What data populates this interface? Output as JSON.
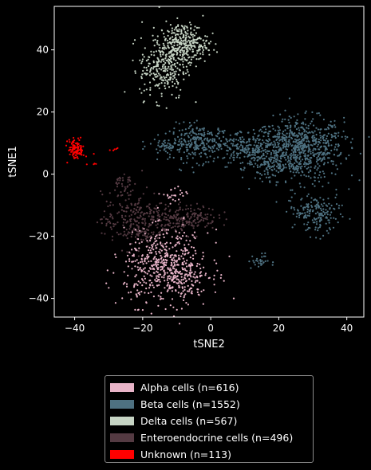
{
  "chart_data": {
    "type": "scatter",
    "xlabel": "tSNE2",
    "ylabel": "tSNE1",
    "xlim": [
      -46,
      45
    ],
    "ylim": [
      -46,
      54
    ],
    "xticks": [
      -40,
      -20,
      0,
      20,
      40
    ],
    "yticks": [
      -40,
      -20,
      0,
      20,
      40
    ],
    "grid": false,
    "legend_position": "below-plot",
    "series": [
      {
        "name": "Alpha cells (n=616)",
        "color": "#e8b4c8",
        "count": 616,
        "clusters": [
          {
            "cx": -13,
            "cy": -30,
            "sx": 6.2,
            "sy": 5.8,
            "n": 556
          },
          {
            "cx": -6,
            "cy": -36,
            "sx": 2.5,
            "sy": 2.5,
            "n": 35
          },
          {
            "cx": -11,
            "cy": -7,
            "sx": 1.8,
            "sy": 1.5,
            "n": 25
          }
        ]
      },
      {
        "name": "Beta cells (n=1552)",
        "color": "#4e7181",
        "count": 1552,
        "clusters": [
          {
            "cx": 26,
            "cy": 8,
            "sx": 6.5,
            "sy": 5,
            "n": 720
          },
          {
            "cx": 12,
            "cy": 8,
            "sx": 5,
            "sy": 3,
            "n": 250
          },
          {
            "cx": -3,
            "cy": 10,
            "sx": 4.5,
            "sy": 3,
            "n": 250
          },
          {
            "cx": -12,
            "cy": 9,
            "sx": 3,
            "sy": 1.5,
            "n": 60
          },
          {
            "cx": 32,
            "cy": -13,
            "sx": 3,
            "sy": 3.5,
            "n": 140
          },
          {
            "cx": 27,
            "cy": -11,
            "sx": 2,
            "sy": 2,
            "n": 40
          },
          {
            "cx": 17,
            "cy": 2,
            "sx": 3,
            "sy": 2,
            "n": 40
          },
          {
            "cx": 14,
            "cy": -28,
            "sx": 1.5,
            "sy": 1.2,
            "n": 30
          },
          {
            "cx": 35,
            "cy": 10,
            "sx": 2.5,
            "sy": 4,
            "n": 22
          }
        ]
      },
      {
        "name": "Delta cells (n=567)",
        "color": "#c6d4c4",
        "count": 567,
        "clusters": [
          {
            "cx": -14,
            "cy": 34,
            "sx": 3.4,
            "sy": 5,
            "n": 250
          },
          {
            "cx": -8,
            "cy": 42,
            "sx": 3.6,
            "sy": 3.3,
            "n": 317
          }
        ]
      },
      {
        "name": "Enteroendocrine cells (n=496)",
        "color": "#543a42",
        "count": 496,
        "clusters": [
          {
            "cx": -22,
            "cy": -15,
            "sx": 5,
            "sy": 4.5,
            "n": 280
          },
          {
            "cx": -7,
            "cy": -14,
            "sx": 4.5,
            "sy": 2,
            "n": 180
          },
          {
            "cx": -26,
            "cy": -3,
            "sx": 1.5,
            "sy": 2,
            "n": 36
          }
        ]
      },
      {
        "name": "Unknown (n=113)",
        "color": "#ff0000",
        "count": 113,
        "clusters": [
          {
            "cx": -39.5,
            "cy": 8,
            "sx": 1.2,
            "sy": 1.6,
            "n": 105
          },
          {
            "cx": -28,
            "cy": 8,
            "sx": 0.6,
            "sy": 0.3,
            "n": 5
          },
          {
            "cx": -34,
            "cy": 3,
            "sx": 0.4,
            "sy": 0.4,
            "n": 3
          }
        ]
      }
    ]
  }
}
